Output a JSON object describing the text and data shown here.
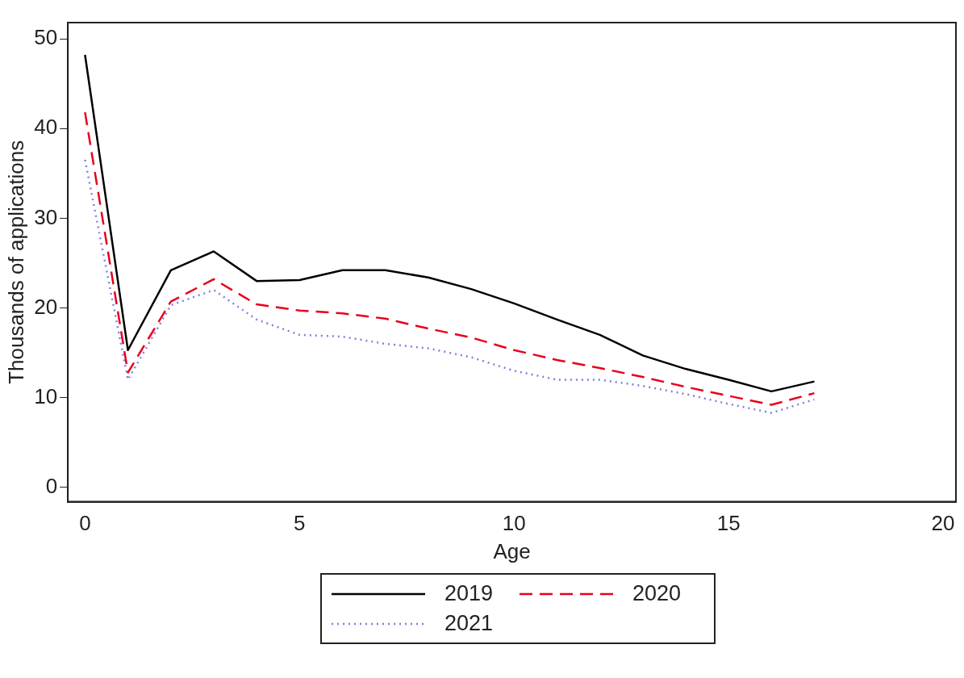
{
  "chart_data": {
    "type": "line",
    "xlabel": "Age",
    "ylabel": "Thousands of applications",
    "x": [
      0,
      1,
      2,
      3,
      4,
      5,
      6,
      7,
      8,
      9,
      10,
      11,
      12,
      13,
      14,
      15,
      16,
      17
    ],
    "series": [
      {
        "name": "2019",
        "color": "#000000",
        "line_style": "solid",
        "values": [
          48.2,
          15.3,
          24.2,
          26.3,
          23.0,
          23.1,
          24.2,
          24.2,
          23.4,
          22.1,
          20.5,
          18.7,
          17.0,
          14.7,
          13.2,
          12.0,
          10.7,
          11.8
        ]
      },
      {
        "name": "2020",
        "color": "#e8001c",
        "line_style": "dashed",
        "values": [
          41.8,
          12.8,
          20.7,
          23.2,
          20.4,
          19.7,
          19.4,
          18.8,
          17.7,
          16.7,
          15.3,
          14.2,
          13.3,
          12.3,
          11.2,
          10.2,
          9.2,
          10.5
        ]
      },
      {
        "name": "2021",
        "color": "#8080e0",
        "line_style": "dotted",
        "values": [
          36.5,
          12.0,
          20.3,
          22.0,
          18.7,
          17.0,
          16.8,
          16.0,
          15.5,
          14.5,
          13.0,
          12.0,
          12.0,
          11.3,
          10.4,
          9.3,
          8.3,
          9.8
        ]
      }
    ],
    "xlim": [
      -0.4,
      20.3
    ],
    "xticks": [
      0,
      5,
      10,
      15,
      20
    ],
    "ylim": [
      -1.6,
      51.8
    ],
    "yticks": [
      0,
      10,
      20,
      30,
      40,
      50
    ],
    "grid": false,
    "legend": "bottom",
    "marker": "none"
  }
}
